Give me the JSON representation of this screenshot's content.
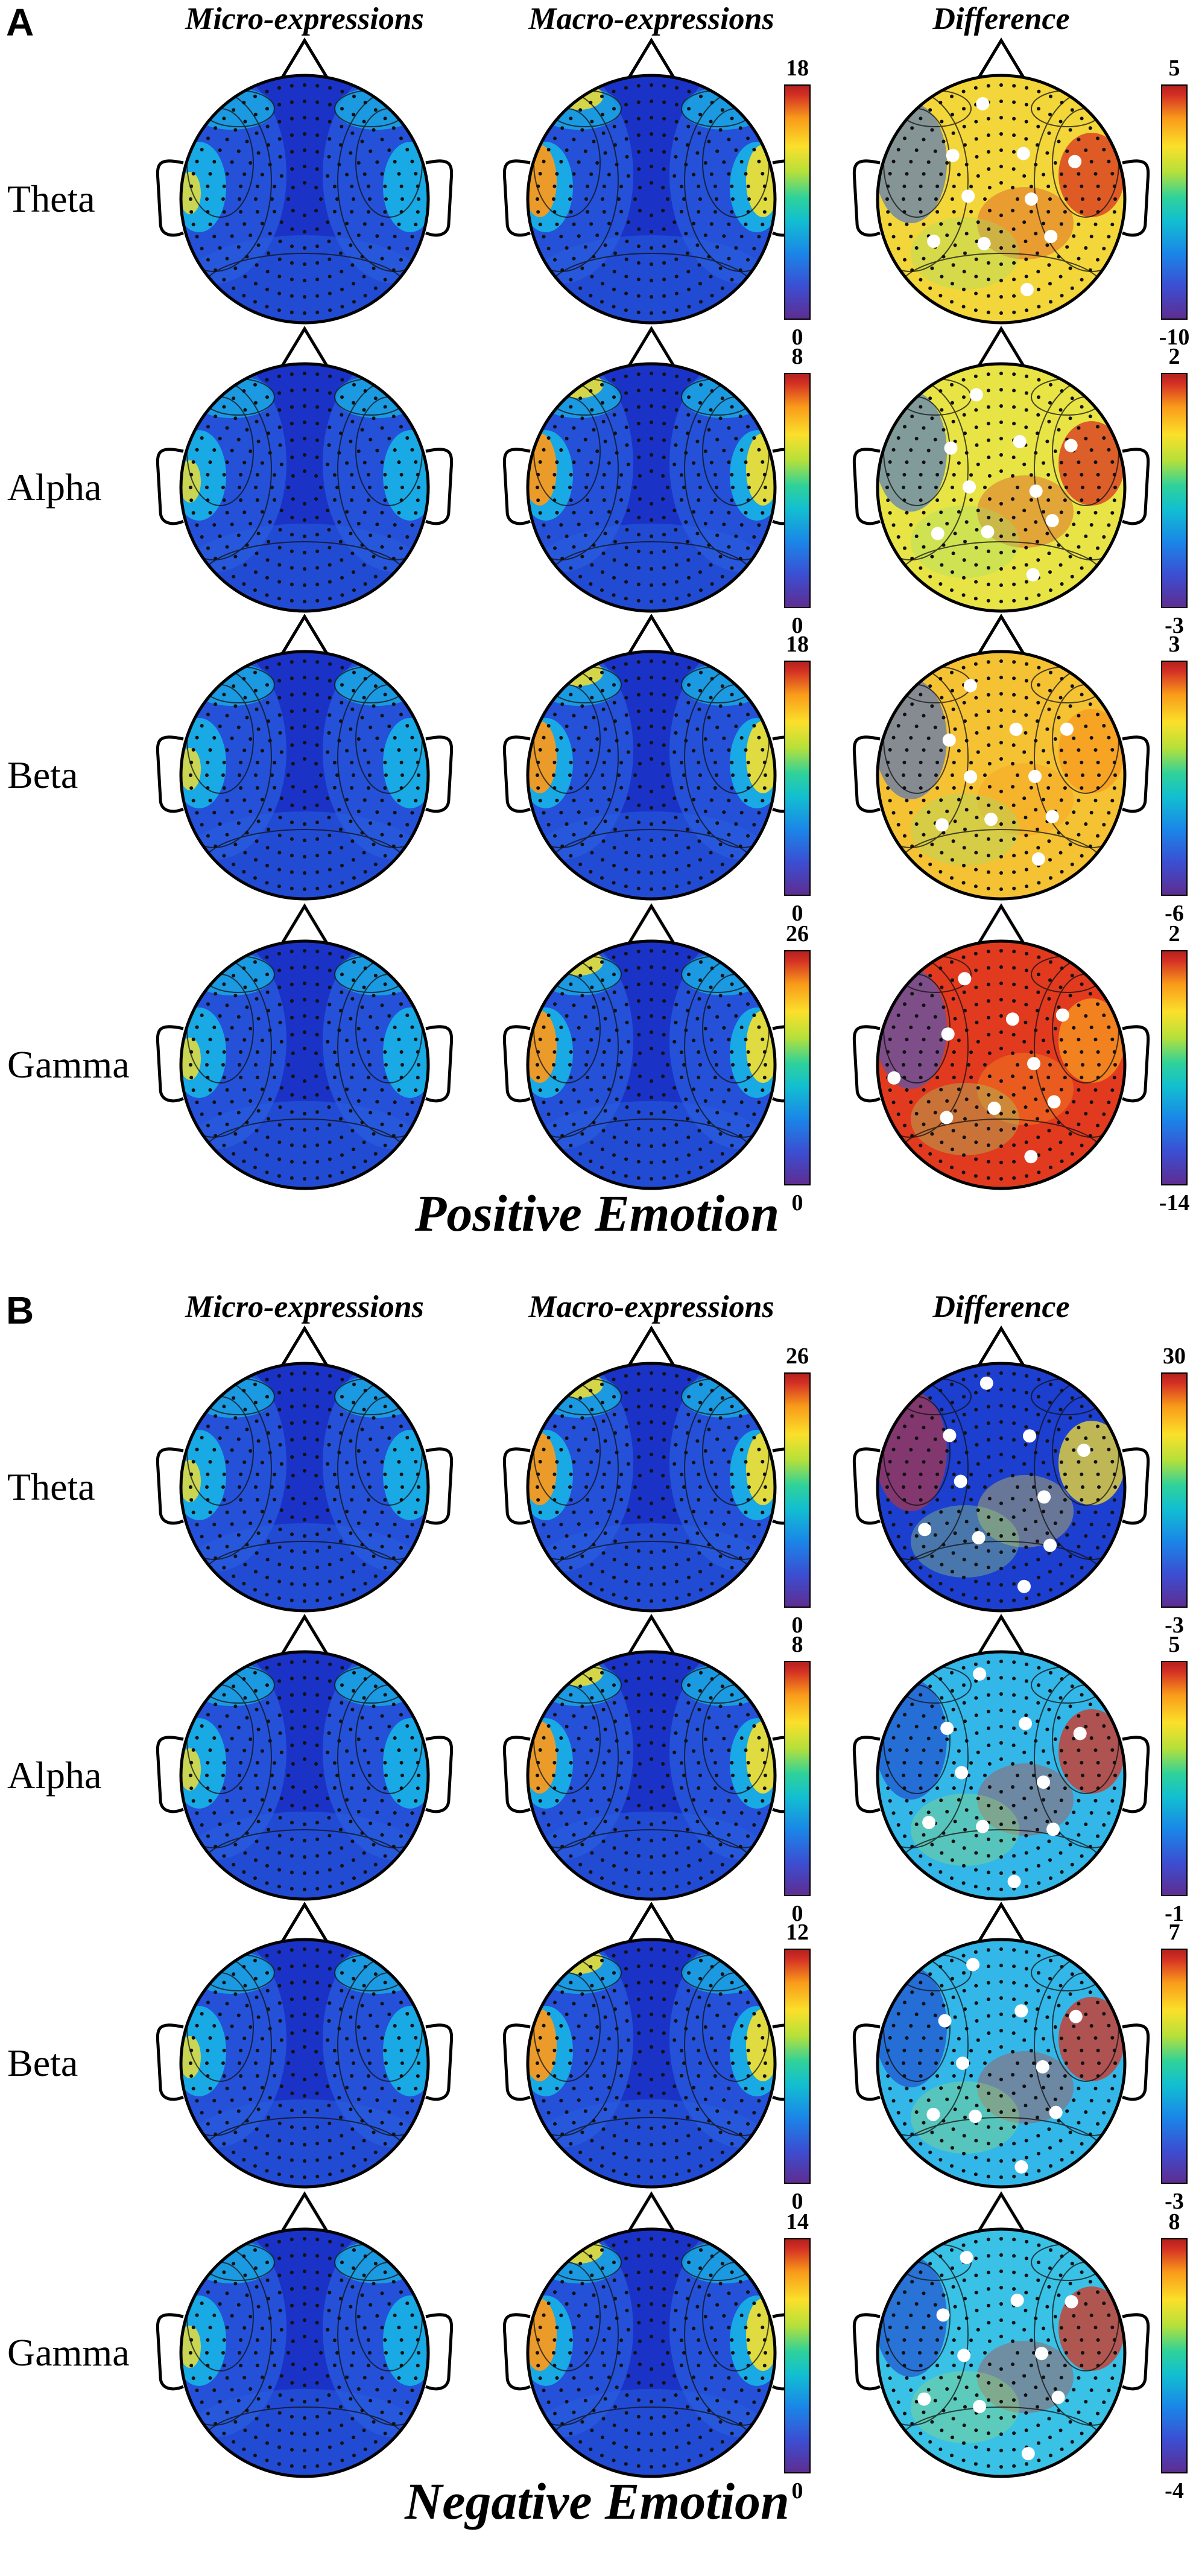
{
  "colors": {
    "blue_dark": "#1a33c6",
    "blue": "#2a5ee0",
    "cyan": "#18b9e6",
    "green": "#54cf7a",
    "yellow": "#f5e02e",
    "orange": "#f79a20",
    "red": "#d8321f",
    "darkred": "#a9201a"
  },
  "panels": [
    {
      "letter": "A",
      "caption": "Positive Emotion",
      "column_headers": [
        "Micro-expressions",
        "Macro-expressions",
        "Difference"
      ],
      "rows": [
        {
          "band": "Theta",
          "scale_max": "18",
          "scale_min": "0",
          "diff_max": "5",
          "diff_min": "-10",
          "diff_bg": "#f3d63a",
          "diff_spots": [
            "#d8321f",
            "#2a5ee0"
          ]
        },
        {
          "band": "Alpha",
          "scale_max": "8",
          "scale_min": "0",
          "diff_max": "2",
          "diff_min": "-3",
          "diff_bg": "#e8e446",
          "diff_spots": [
            "#d8321f",
            "#2a5ee0"
          ]
        },
        {
          "band": "Beta",
          "scale_max": "18",
          "scale_min": "0",
          "diff_max": "3",
          "diff_min": "-6",
          "diff_bg": "#f5c234",
          "diff_spots": [
            "#f79a20",
            "#2a5ee0"
          ]
        },
        {
          "band": "Gamma",
          "scale_max": "26",
          "scale_min": "0",
          "diff_max": "2",
          "diff_min": "-14",
          "diff_bg": "#e23a1e",
          "diff_spots": [
            "#f79a20",
            "#2a5ee0"
          ]
        }
      ]
    },
    {
      "letter": "B",
      "caption": "Negative Emotion",
      "column_headers": [
        "Micro-expressions",
        "Macro-expressions",
        "Difference"
      ],
      "rows": [
        {
          "band": "Theta",
          "scale_max": "26",
          "scale_min": "0",
          "diff_max": "30",
          "diff_min": "-3",
          "diff_bg": "#1c3fd0",
          "diff_spots": [
            "#f5e02e",
            "#d8321f"
          ]
        },
        {
          "band": "Alpha",
          "scale_max": "8",
          "scale_min": "0",
          "diff_max": "5",
          "diff_min": "-1",
          "diff_bg": "#33b7e8",
          "diff_spots": [
            "#d8321f",
            "#1a33c6"
          ]
        },
        {
          "band": "Beta",
          "scale_max": "12",
          "scale_min": "0",
          "diff_max": "7",
          "diff_min": "-3",
          "diff_bg": "#33b7e8",
          "diff_spots": [
            "#d8321f",
            "#1a33c6"
          ]
        },
        {
          "band": "Gamma",
          "scale_max": "14",
          "scale_min": "0",
          "diff_max": "8",
          "diff_min": "-4",
          "diff_bg": "#3ac1e6",
          "diff_spots": [
            "#d8321f",
            "#1a33c6"
          ]
        }
      ]
    }
  ]
}
